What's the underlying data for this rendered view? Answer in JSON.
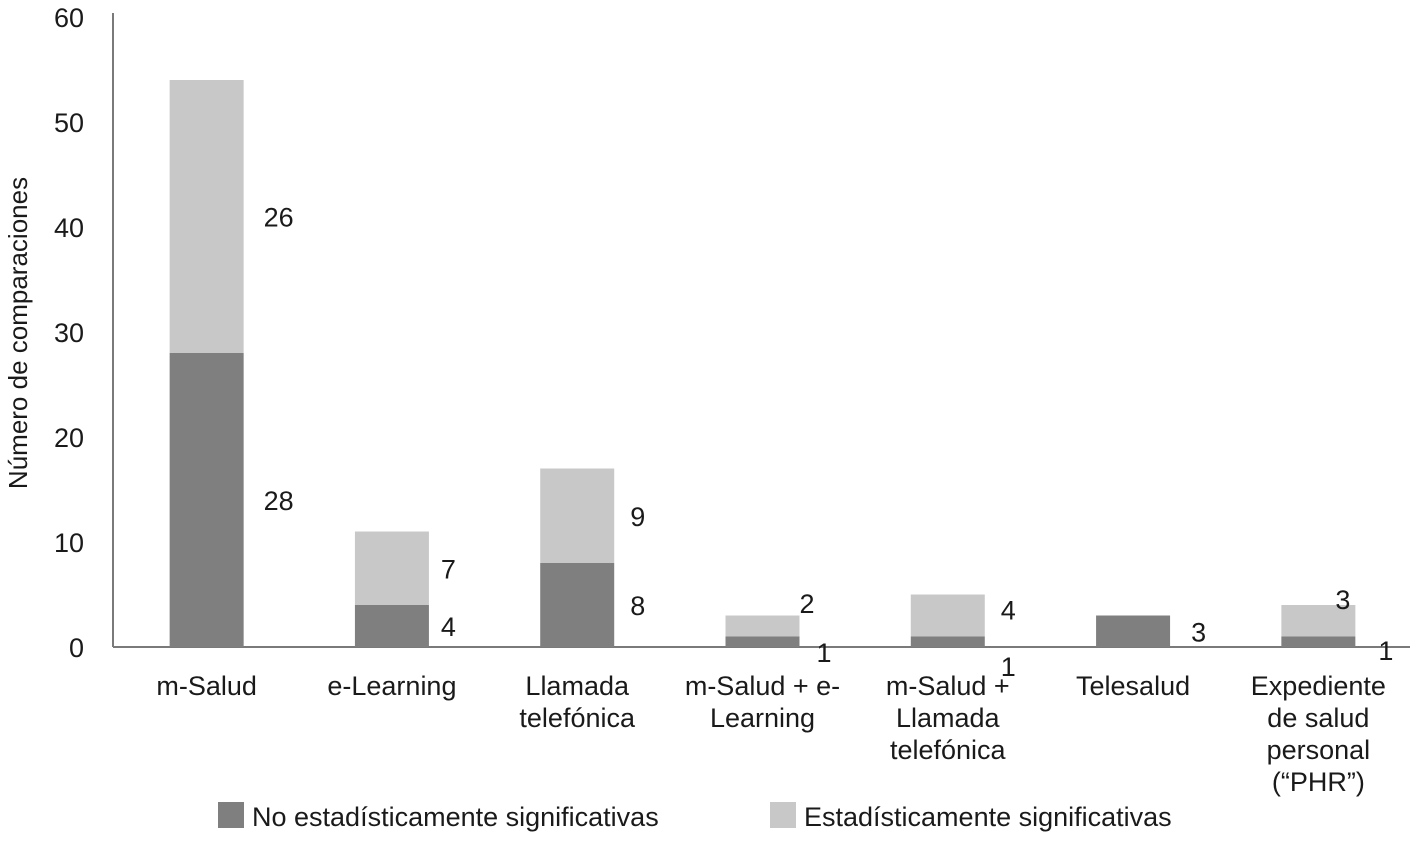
{
  "chart_data": {
    "type": "bar",
    "stacked": true,
    "title": "",
    "xlabel": "",
    "ylabel": "Número de comparaciones",
    "ylim": [
      0,
      60
    ],
    "yticks": [
      0,
      10,
      20,
      30,
      40,
      50,
      60
    ],
    "grid": false,
    "legend_position": "bottom",
    "categories": [
      [
        "m-Salud"
      ],
      [
        "e-Learning"
      ],
      [
        "Llamada",
        "telefónica"
      ],
      [
        "m-Salud + e-",
        "Learning"
      ],
      [
        "m-Salud +",
        "Llamada",
        "telefónica"
      ],
      [
        "Telesalud"
      ],
      [
        "Expediente",
        "de salud",
        "personal",
        "(“PHR”)"
      ]
    ],
    "series": [
      {
        "name": "No estadísticamente significativas",
        "color": "#7f7f7f",
        "values": [
          28,
          4,
          8,
          1,
          1,
          3,
          1
        ],
        "labels": [
          "28",
          "4",
          "8",
          "1",
          "1",
          "3",
          "1"
        ]
      },
      {
        "name": "Estadísticamente significativas",
        "color": "#c8c8c8",
        "values": [
          26,
          7,
          9,
          2,
          4,
          0,
          3
        ],
        "labels": [
          "26",
          "7",
          "9",
          "2",
          "4",
          "",
          "3"
        ]
      }
    ]
  }
}
